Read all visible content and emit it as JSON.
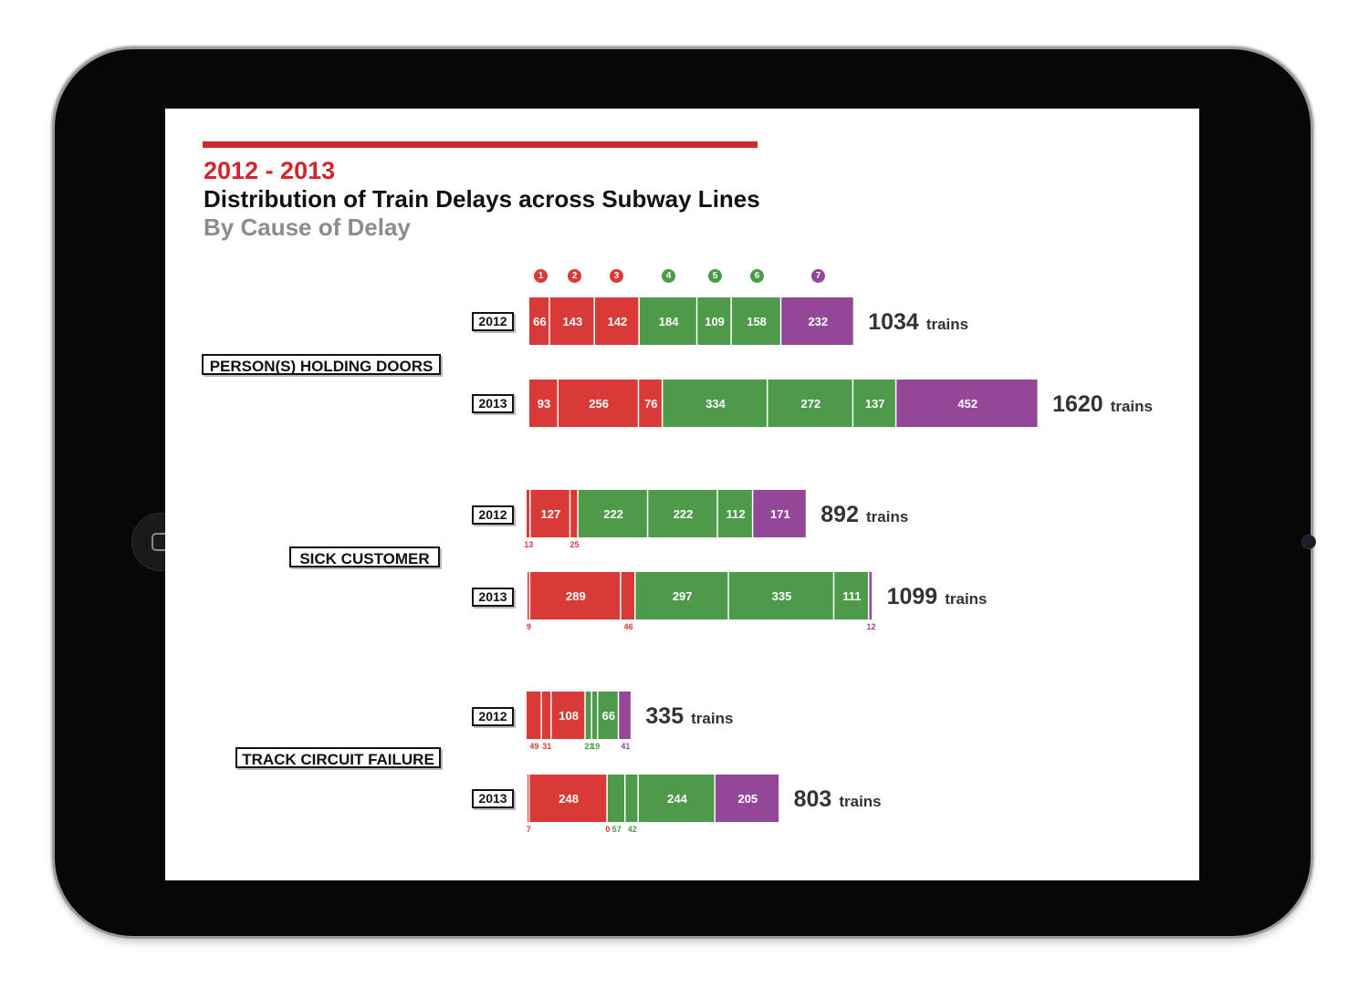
{
  "title": {
    "years": "2012 - 2013",
    "main": "Distribution of Train Delays across Subway Lines",
    "sub": "By Cause of Delay"
  },
  "colors": {
    "red": "#d93a37",
    "green": "#4c9a4a",
    "purple": "#934798",
    "accent": "#d3262c"
  },
  "lines": [
    {
      "label": "1",
      "color": "#d93a37"
    },
    {
      "label": "2",
      "color": "#d93a37"
    },
    {
      "label": "3",
      "color": "#d93a37"
    },
    {
      "label": "4",
      "color": "#4c9a4a"
    },
    {
      "label": "5",
      "color": "#4c9a4a"
    },
    {
      "label": "6",
      "color": "#4c9a4a"
    },
    {
      "label": "7",
      "color": "#934798"
    }
  ],
  "unit": "trains",
  "chart_data": {
    "type": "bar",
    "orientation": "horizontal",
    "stacked": true,
    "series_names": [
      "1",
      "2",
      "3",
      "4",
      "5",
      "6",
      "7"
    ],
    "groups": [
      {
        "cause": "PERSON(S) HOLDING DOORS",
        "rows": [
          {
            "year": "2012",
            "values": [
              66,
              143,
              142,
              184,
              109,
              158,
              232
            ],
            "total": 1034
          },
          {
            "year": "2013",
            "values": [
              93,
              256,
              76,
              334,
              272,
              137,
              452
            ],
            "total": 1620
          }
        ]
      },
      {
        "cause": "SICK CUSTOMER",
        "rows": [
          {
            "year": "2012",
            "values": [
              13,
              127,
              25,
              222,
              222,
              112,
              171
            ],
            "total": 892
          },
          {
            "year": "2013",
            "values": [
              9,
              289,
              46,
              297,
              335,
              111,
              12
            ],
            "total": 1099
          }
        ]
      },
      {
        "cause": "TRACK CIRCUIT FAILURE",
        "rows": [
          {
            "year": "2012",
            "values": [
              49,
              31,
              108,
              21,
              19,
              66,
              41
            ],
            "total": 335
          },
          {
            "year": "2013",
            "values": [
              7,
              248,
              0,
              57,
              42,
              244,
              205
            ],
            "total": 803
          }
        ]
      }
    ]
  }
}
